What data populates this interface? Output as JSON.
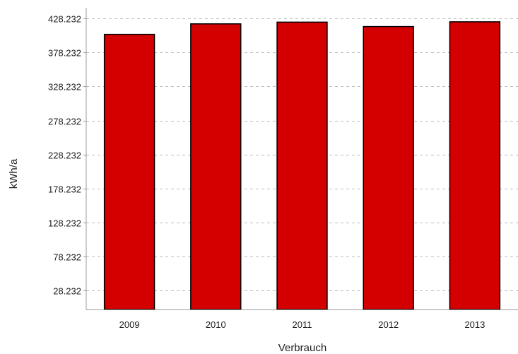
{
  "chart_data": {
    "type": "bar",
    "categories": [
      "2009",
      "2010",
      "2011",
      "2012",
      "2013"
    ],
    "values": [
      405000,
      420500,
      423000,
      416500,
      423500
    ],
    "xlabel": "Verbrauch",
    "ylabel": "kWh/a",
    "ylim": [
      0,
      440000
    ],
    "yticks": [
      28232,
      78232,
      128232,
      178232,
      228232,
      278232,
      328232,
      378232,
      428232
    ],
    "ytick_labels": [
      "28.232",
      "78.232",
      "128.232",
      "178.232",
      "228.232",
      "278.232",
      "328.232",
      "378.232",
      "428.232"
    ],
    "grid": "horizontal dashed",
    "legend": "none",
    "colors": {
      "bar": "#d40000",
      "bar_border": "#000000",
      "grid": "#bbbbbb",
      "axis": "#999999"
    }
  }
}
